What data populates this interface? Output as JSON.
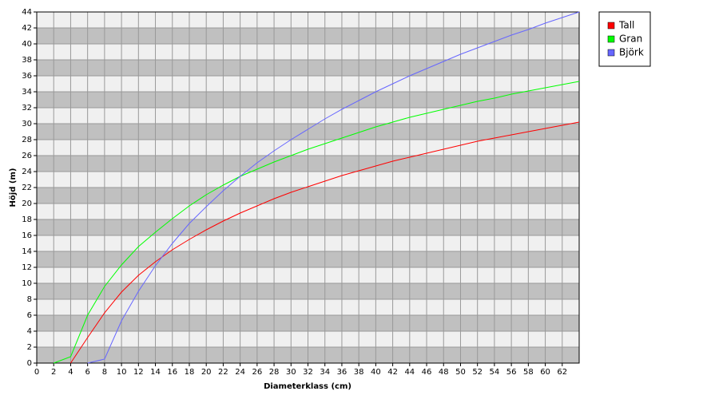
{
  "chart_data": {
    "type": "line",
    "x_label": "Diameterklass (cm)",
    "y_label": "Höjd (m)",
    "x": [
      2,
      4,
      6,
      8,
      10,
      12,
      14,
      16,
      18,
      20,
      22,
      24,
      26,
      28,
      30,
      32,
      34,
      36,
      38,
      40,
      42,
      44,
      46,
      48,
      50,
      52,
      54,
      56,
      58,
      60,
      62,
      64
    ],
    "series": [
      {
        "name": "Tall",
        "color": "#ff0000",
        "values": [
          null,
          0,
          3.2,
          6.3,
          8.9,
          11,
          12.7,
          14.2,
          15.5,
          16.7,
          17.8,
          18.8,
          19.7,
          20.6,
          21.4,
          22.1,
          22.8,
          23.5,
          24.1,
          24.7,
          25.3,
          25.8,
          26.3,
          26.8,
          27.3,
          27.8,
          28.2,
          28.6,
          29.0,
          29.4,
          29.8,
          30.2
        ]
      },
      {
        "name": "Gran",
        "color": "#00ff00",
        "values": [
          0,
          0.8,
          6,
          9.6,
          12.3,
          14.6,
          16.4,
          18.1,
          19.7,
          21.1,
          22.3,
          23.4,
          24.3,
          25.2,
          26,
          26.8,
          27.5,
          28.2,
          28.9,
          29.6,
          30.2,
          30.8,
          31.3,
          31.8,
          32.3,
          32.8,
          33.2,
          33.7,
          34.1,
          34.5,
          34.9,
          35.3
        ]
      },
      {
        "name": "Björk",
        "color": "#6666ff",
        "values": [
          null,
          null,
          0,
          0.5,
          5.3,
          9,
          12.2,
          15,
          17.5,
          19.6,
          21.6,
          23.4,
          25.1,
          26.6,
          28,
          29.3,
          30.6,
          31.8,
          32.9,
          34,
          35,
          36,
          36.9,
          37.8,
          38.7,
          39.5,
          40.3,
          41.1,
          41.8,
          42.6,
          43.3,
          44
        ]
      }
    ],
    "xlim": [
      0,
      64
    ],
    "xticks": [
      0,
      2,
      4,
      6,
      8,
      10,
      12,
      14,
      16,
      18,
      20,
      22,
      24,
      26,
      28,
      30,
      32,
      34,
      36,
      38,
      40,
      42,
      44,
      46,
      48,
      50,
      52,
      54,
      56,
      58,
      60,
      62
    ],
    "ylim": [
      0,
      44
    ],
    "yticks": [
      0,
      2,
      4,
      6,
      8,
      10,
      12,
      14,
      16,
      18,
      20,
      22,
      24,
      26,
      28,
      30,
      32,
      34,
      36,
      38,
      40,
      42,
      44
    ],
    "grid": true,
    "legend": "right"
  }
}
